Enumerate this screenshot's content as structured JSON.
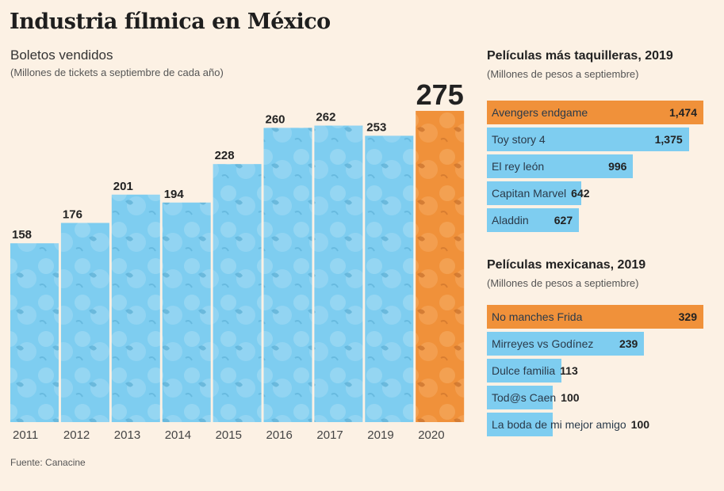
{
  "title": "Industria fílmica en México",
  "source": "Fuente: Canacine",
  "colors": {
    "background": "#fcf1e4",
    "blue": "#7ecdf0",
    "orange": "#f0913a"
  },
  "chart_data": [
    {
      "type": "bar",
      "title": "Boletos vendidos",
      "subtitle": "(Millones de tickets a septiembre de cada año)",
      "categories": [
        "2011",
        "2012",
        "2013",
        "2014",
        "2015",
        "2016",
        "2017",
        "2019",
        "2020"
      ],
      "values": [
        158,
        176,
        201,
        194,
        228,
        260,
        262,
        253,
        275
      ],
      "highlight": "2020",
      "xlabel": "",
      "ylabel": "Millones de tickets",
      "ylim": [
        0,
        275
      ],
      "grid": false
    },
    {
      "type": "bar",
      "orientation": "horizontal",
      "title": "Películas más taquilleras, 2019",
      "subtitle": "(Millones de pesos a septiembre)",
      "categories": [
        "Avengers endgame",
        "Toy story 4",
        "El rey león",
        "Capitan Marvel",
        "Aladdin"
      ],
      "values": [
        1474,
        1375,
        996,
        642,
        627
      ],
      "labels": [
        "1,474",
        "1,375",
        "996",
        "642",
        "627"
      ],
      "highlight": "Avengers endgame"
    },
    {
      "type": "bar",
      "orientation": "horizontal",
      "title": "Películas mexicanas, 2019",
      "subtitle": "(Millones de pesos a septiembre)",
      "categories": [
        "No manches Frida",
        "Mirreyes vs Godínez",
        "Dulce familia",
        "Tod@s Caen",
        "La boda de mi mejor amigo"
      ],
      "values": [
        329,
        239,
        113,
        100,
        100
      ],
      "labels": [
        "329",
        "239",
        "113",
        "100",
        "100"
      ],
      "highlight": "No manches Frida"
    }
  ]
}
